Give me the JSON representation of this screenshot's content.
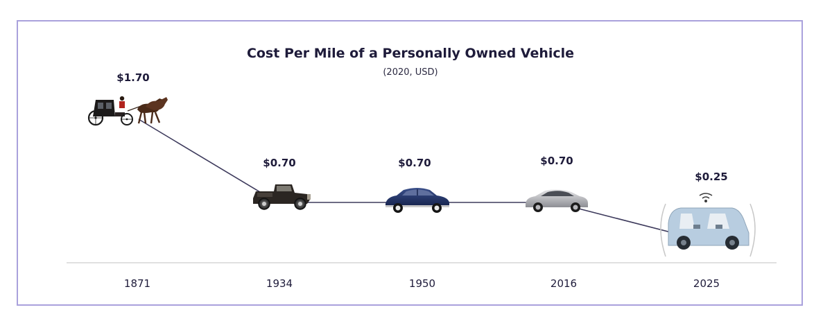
{
  "chart_data": {
    "type": "line",
    "title": "Cost Per Mile of a Personally Owned Vehicle",
    "subtitle": "(2020, USD)",
    "categories": [
      "1871",
      "1934",
      "1950",
      "2016",
      "2025"
    ],
    "values": [
      1.7,
      0.7,
      0.7,
      0.7,
      0.25
    ],
    "value_labels": [
      "$1.70",
      "$0.70",
      "$0.70",
      "$0.70",
      "$0.25"
    ],
    "vehicles": [
      "horse-carriage",
      "vintage-car",
      "classic-sedan",
      "modern-sedan",
      "autonomous-vehicle"
    ],
    "xlabel": "",
    "ylabel": "",
    "ylim": [
      0,
      1.8
    ],
    "grid": false,
    "colors": {
      "line": "#3d3a5c",
      "axis": "#d6d6d6",
      "frame": "#a9a1dc",
      "text": "#1e1b3a"
    }
  }
}
